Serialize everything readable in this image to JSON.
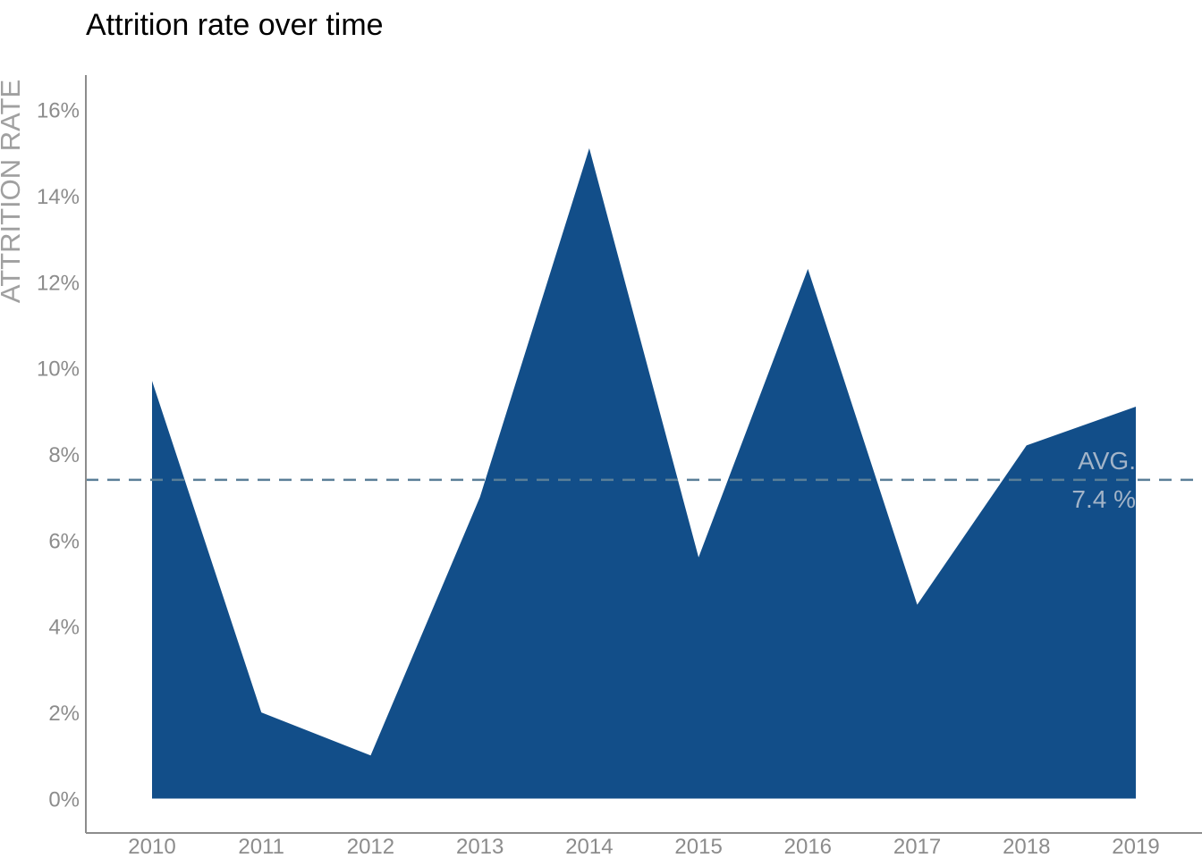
{
  "chart_data": {
    "type": "area",
    "title": "Attrition rate over time",
    "xlabel": "",
    "ylabel": "ATTRITION RATE",
    "categories": [
      "2010",
      "2011",
      "2012",
      "2013",
      "2014",
      "2015",
      "2016",
      "2017",
      "2018",
      "2019"
    ],
    "series": [
      {
        "values": [
          9.7,
          2.0,
          1.0,
          7.0,
          15.1,
          5.6,
          12.3,
          4.5,
          8.2,
          9.1
        ]
      }
    ],
    "ylim": [
      -0.8,
      16.8
    ],
    "yticks": [
      0,
      2,
      4,
      6,
      8,
      10,
      12,
      14,
      16
    ],
    "ytick_labels": [
      "0%",
      "2%",
      "4%",
      "6%",
      "8%",
      "10%",
      "12%",
      "14%",
      "16%"
    ],
    "grid": false,
    "reference_line": {
      "value": 7.4,
      "style": "dashed",
      "label_line1": "AVG.",
      "label_line2": "7.4 %"
    },
    "colors": {
      "area": "#124e89",
      "reference_line": "#5b7f98",
      "axis": "#8c8c8c",
      "tick_text": "#8c8c8c",
      "ylabel": "#a0a0a0",
      "avg_label": "#a3b4c8",
      "title": "#000000"
    }
  }
}
